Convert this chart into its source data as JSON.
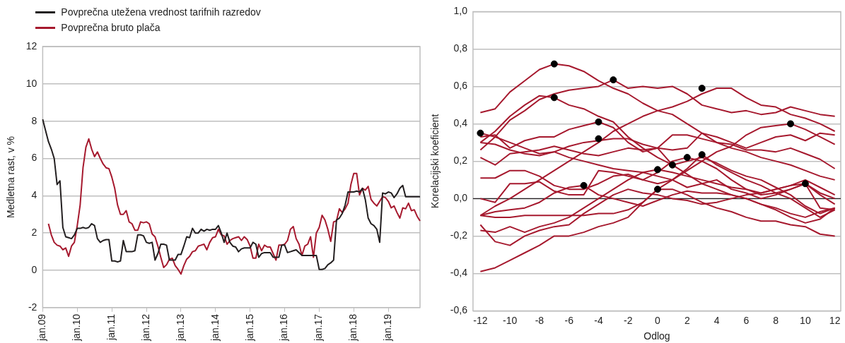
{
  "chart_data": [
    {
      "type": "line",
      "ylabel": "Medletna rast, v %",
      "legend": "top left",
      "grid": "y",
      "ylim": [
        -2,
        12
      ],
      "yticks": [
        -2,
        0,
        2,
        4,
        6,
        8,
        10,
        12
      ],
      "categories": [
        "jan.09",
        null,
        null,
        null,
        null,
        null,
        null,
        null,
        null,
        null,
        null,
        null,
        "jan.10",
        null,
        null,
        null,
        null,
        null,
        null,
        null,
        null,
        null,
        null,
        null,
        "jan.11",
        null,
        null,
        null,
        null,
        null,
        null,
        null,
        null,
        null,
        null,
        null,
        "jan.12",
        null,
        null,
        null,
        null,
        null,
        null,
        null,
        null,
        null,
        null,
        null,
        "jan.13",
        null,
        null,
        null,
        null,
        null,
        null,
        null,
        null,
        null,
        null,
        null,
        "jan.14",
        null,
        null,
        null,
        null,
        null,
        null,
        null,
        null,
        null,
        null,
        null,
        "jan.15",
        null,
        null,
        null,
        null,
        null,
        null,
        null,
        null,
        null,
        null,
        null,
        "jan.16",
        null,
        null,
        null,
        null,
        null,
        null,
        null,
        null,
        null,
        null,
        null,
        "jan.17",
        null,
        null,
        null,
        null,
        null,
        null,
        null,
        null,
        null,
        null,
        null,
        "jan.18",
        null,
        null,
        null,
        null,
        null,
        null,
        null,
        null,
        null,
        null,
        null,
        "jan.19",
        null,
        null,
        null,
        null,
        null,
        null,
        null,
        null,
        null,
        null,
        null
      ],
      "series": [
        {
          "name": "Povprečna utežena vrednost tarifnih razredov",
          "color": "#231f20",
          "values": [
            8.1,
            7.5,
            6.9,
            6.5,
            6.0,
            4.6,
            4.8,
            2.3,
            1.8,
            1.75,
            1.7,
            1.9,
            2.25,
            2.25,
            2.3,
            2.25,
            2.3,
            2.5,
            2.4,
            1.7,
            1.5,
            1.6,
            1.65,
            1.65,
            0.5,
            0.5,
            0.45,
            0.5,
            1.6,
            1.0,
            1.0,
            1.0,
            1.05,
            1.9,
            1.9,
            1.85,
            1.5,
            1.45,
            1.5,
            0.55,
            0.9,
            1.4,
            1.4,
            1.35,
            0.55,
            0.55,
            0.55,
            0.85,
            0.85,
            1.3,
            1.8,
            1.75,
            2.25,
            2.0,
            2.0,
            2.2,
            2.1,
            2.2,
            2.15,
            2.2,
            2.2,
            2.4,
            2.0,
            1.5,
            2.0,
            1.5,
            1.3,
            1.25,
            1.0,
            1.15,
            1.2,
            1.2,
            1.2,
            1.5,
            1.4,
            0.7,
            0.9,
            0.95,
            0.95,
            0.95,
            0.7,
            0.7,
            0.7,
            1.35,
            1.35,
            0.95,
            1.0,
            1.05,
            1.1,
            0.95,
            0.8,
            0.8,
            0.8,
            0.8,
            0.8,
            0.8,
            0.05,
            0.05,
            0.1,
            0.3,
            0.4,
            0.55,
            2.7,
            2.8,
            3.05,
            3.5,
            4.2,
            4.2,
            4.2,
            4.25,
            4.2,
            4.4,
            3.8,
            2.8,
            2.5,
            2.4,
            2.2,
            1.5,
            4.15,
            4.1,
            4.2,
            4.15,
            3.9,
            4.1,
            4.4,
            4.55,
            3.95,
            3.95,
            3.95,
            3.95,
            3.95,
            3.95
          ]
        },
        {
          "name": "Povprečna bruto plača",
          "color": "#a6192e",
          "values": [
            null,
            null,
            2.5,
            1.9,
            1.5,
            1.35,
            1.3,
            1.1,
            1.2,
            0.75,
            1.3,
            1.5,
            2.4,
            3.5,
            5.5,
            6.6,
            7.05,
            6.5,
            6.1,
            6.35,
            6.0,
            5.7,
            5.5,
            5.45,
            5.0,
            4.4,
            3.5,
            3.0,
            3.0,
            3.2,
            2.6,
            2.5,
            2.15,
            2.15,
            2.6,
            2.55,
            2.6,
            2.5,
            1.95,
            1.8,
            1.3,
            0.7,
            0.15,
            0.3,
            0.6,
            0.65,
            0.25,
            0.05,
            -0.2,
            0.25,
            0.6,
            0.75,
            1.0,
            1.05,
            1.3,
            1.35,
            1.4,
            1.1,
            1.5,
            1.75,
            1.8,
            2.2,
            1.9,
            1.85,
            1.4,
            1.6,
            1.7,
            1.75,
            1.8,
            1.6,
            1.8,
            1.65,
            1.3,
            0.65,
            0.65,
            1.4,
            1.05,
            1.35,
            1.25,
            1.25,
            0.9,
            0.55,
            1.35,
            1.35,
            1.4,
            1.6,
            2.2,
            2.35,
            1.7,
            1.4,
            0.8,
            1.3,
            1.4,
            1.8,
            0.7,
            2.0,
            2.3,
            2.95,
            2.7,
            2.2,
            1.55,
            2.6,
            2.65,
            3.3,
            3.1,
            3.3,
            3.6,
            4.6,
            5.2,
            5.2,
            4.05,
            4.4,
            4.3,
            4.5,
            3.8,
            3.6,
            3.45,
            3.7,
            3.95,
            3.9,
            3.7,
            3.35,
            3.45,
            3.1,
            2.8,
            3.35,
            3.3,
            3.6,
            3.2,
            3.25,
            2.9,
            2.65
          ]
        }
      ]
    },
    {
      "type": "line",
      "xlabel": "Odlog",
      "ylabel": "Korelacijski koeficient",
      "grid": "y",
      "xlim": [
        -12.5,
        12.4
      ],
      "xticks": [
        -12,
        -10,
        -8,
        -6,
        -4,
        -2,
        0,
        2,
        4,
        6,
        8,
        10,
        12
      ],
      "ylim": [
        -0.6,
        1.0
      ],
      "yticks": [
        {
          "value": -0.6,
          "label": "-0,6"
        },
        {
          "value": -0.4,
          "label": "-0,4"
        },
        {
          "value": -0.2,
          "label": "-0,2"
        },
        {
          "value": 0,
          "label": "0,0"
        },
        {
          "value": 0.2,
          "label": "0,2"
        },
        {
          "value": 0.4,
          "label": "0,4"
        },
        {
          "value": 0.6,
          "label": "0,6"
        },
        {
          "value": 0.8,
          "label": "0,8"
        },
        {
          "value": 1.0,
          "label": "1,0"
        }
      ],
      "ref_lines": [
        {
          "axis": "y",
          "value": 0,
          "color": "#231f20"
        }
      ],
      "x": [
        -12,
        -11,
        -10,
        -9,
        -8,
        -7,
        -6,
        -5,
        -4,
        -3,
        -2,
        -1,
        0,
        1,
        2,
        3,
        4,
        5,
        6,
        7,
        8,
        9,
        10,
        11,
        12
      ],
      "series": [
        {
          "color": "#a6192e",
          "values": [
            0.46,
            0.48,
            0.57,
            0.63,
            0.69,
            0.72,
            0.71,
            0.68,
            0.63,
            0.59,
            0.56,
            0.51,
            0.47,
            0.45,
            0.4,
            0.35,
            0.3,
            0.27,
            0.25,
            0.22,
            0.2,
            0.18,
            0.15,
            0.12,
            0.1
          ]
        },
        {
          "color": "#a6192e",
          "values": [
            -0.09,
            -0.04,
            0.0,
            0.05,
            0.1,
            0.15,
            0.2,
            0.25,
            0.3,
            0.36,
            0.4,
            0.44,
            0.47,
            0.49,
            0.52,
            0.56,
            0.59,
            0.59,
            0.54,
            0.5,
            0.49,
            0.45,
            0.43,
            0.4,
            0.36
          ]
        },
        {
          "color": "#a6192e",
          "values": [
            0.26,
            0.33,
            0.42,
            0.47,
            0.53,
            0.56,
            0.58,
            0.59,
            0.6,
            0.635,
            0.59,
            0.6,
            0.59,
            0.6,
            0.56,
            0.5,
            0.48,
            0.46,
            0.47,
            0.45,
            0.46,
            0.49,
            0.47,
            0.45,
            0.44
          ]
        },
        {
          "color": "#a6192e",
          "values": [
            0.3,
            0.36,
            0.44,
            0.5,
            0.55,
            0.54,
            0.5,
            0.48,
            0.44,
            0.41,
            0.33,
            0.27,
            0.22,
            0.18,
            0.13,
            0.08,
            0.05,
            0.02,
            0.0,
            -0.03,
            -0.06,
            -0.1,
            -0.13,
            -0.11,
            -0.05
          ]
        },
        {
          "color": "#a6192e",
          "values": [
            0.33,
            0.34,
            0.27,
            0.31,
            0.33,
            0.33,
            0.37,
            0.39,
            0.41,
            0.38,
            0.3,
            0.25,
            0.27,
            0.34,
            0.34,
            0.32,
            0.3,
            0.29,
            0.26,
            0.26,
            0.25,
            0.27,
            0.24,
            0.21,
            0.16
          ]
        },
        {
          "color": "#a6192e",
          "values": [
            0.3,
            0.29,
            0.26,
            0.24,
            0.23,
            0.25,
            0.28,
            0.3,
            0.31,
            0.32,
            0.32,
            0.29,
            0.27,
            0.26,
            0.27,
            0.35,
            0.33,
            0.3,
            0.27,
            0.3,
            0.33,
            0.34,
            0.31,
            0.35,
            0.34
          ]
        },
        {
          "color": "#a6192e",
          "values": [
            0.11,
            0.11,
            0.15,
            0.15,
            0.12,
            0.07,
            0.05,
            0.05,
            0.08,
            0.12,
            0.13,
            0.1,
            0.08,
            0.1,
            0.15,
            0.2,
            0.25,
            0.28,
            0.34,
            0.38,
            0.39,
            0.4,
            0.37,
            0.33,
            0.29
          ]
        },
        {
          "color": "#a6192e",
          "values": [
            -0.09,
            -0.07,
            -0.06,
            -0.05,
            -0.02,
            0.03,
            0.06,
            0.07,
            0.02,
            0.0,
            -0.02,
            -0.04,
            -0.01,
            0.02,
            0.04,
            0.03,
            0.03,
            0.02,
            0.0,
            -0.03,
            -0.05,
            -0.08,
            -0.1,
            -0.07,
            -0.05
          ]
        },
        {
          "color": "#a6192e",
          "values": [
            -0.17,
            -0.18,
            -0.15,
            -0.18,
            -0.15,
            -0.13,
            -0.1,
            -0.05,
            0.0,
            0.05,
            0.1,
            0.14,
            0.155,
            0.14,
            0.12,
            0.1,
            0.08,
            0.06,
            0.05,
            0.03,
            0.05,
            0.07,
            0.1,
            0.06,
            0.02
          ]
        },
        {
          "color": "#a6192e",
          "values": [
            -0.09,
            -0.1,
            -0.1,
            -0.09,
            -0.09,
            -0.09,
            -0.09,
            -0.09,
            -0.08,
            -0.08,
            -0.06,
            -0.02,
            0.05,
            0.05,
            0.02,
            -0.02,
            -0.05,
            -0.07,
            -0.1,
            -0.12,
            -0.12,
            -0.14,
            -0.15,
            -0.19,
            -0.2
          ]
        },
        {
          "color": "#a6192e",
          "values": [
            0.22,
            0.18,
            0.24,
            0.25,
            0.26,
            0.28,
            0.26,
            0.24,
            0.23,
            0.25,
            0.27,
            0.26,
            0.27,
            0.18,
            0.2,
            0.22,
            0.19,
            0.15,
            0.12,
            0.1,
            0.06,
            0.02,
            -0.04,
            -0.08,
            -0.05
          ]
        },
        {
          "color": "#a6192e",
          "values": [
            0.0,
            -0.02,
            0.08,
            0.08,
            0.09,
            0.04,
            0.02,
            0.02,
            0.15,
            0.14,
            0.12,
            0.1,
            0.14,
            0.2,
            0.22,
            0.2,
            0.16,
            0.1,
            0.05,
            0.02,
            0.03,
            0.05,
            0.08,
            0.02,
            -0.03
          ]
        },
        {
          "color": "#a6192e",
          "values": [
            -0.39,
            -0.37,
            -0.33,
            -0.29,
            -0.25,
            -0.2,
            -0.2,
            -0.18,
            -0.15,
            -0.13,
            -0.1,
            -0.02,
            0.05,
            0.1,
            0.16,
            0.235,
            0.18,
            0.14,
            0.1,
            0.07,
            0.03,
            0.0,
            -0.05,
            -0.1,
            -0.06
          ]
        },
        {
          "color": "#a6192e",
          "values": [
            -0.14,
            -0.23,
            -0.25,
            -0.2,
            -0.17,
            -0.15,
            -0.14,
            -0.08,
            -0.03,
            0.02,
            0.05,
            0.03,
            0.02,
            0.0,
            -0.01,
            -0.03,
            -0.02,
            0.0,
            0.02,
            0.03,
            0.05,
            0.07,
            0.08,
            -0.05,
            -0.06
          ]
        },
        {
          "color": "#a6192e",
          "values": [
            0.35,
            0.33,
            0.3,
            0.27,
            0.24,
            0.25,
            0.22,
            0.2,
            0.18,
            0.16,
            0.15,
            0.14,
            0.12,
            0.1,
            0.06,
            0.08,
            0.1,
            0.05,
            0.03,
            0.0,
            0.02,
            0.05,
            0.08,
            0.03,
            0.0
          ]
        },
        {
          "type": "scatter",
          "marker": "circle",
          "color": "#000000",
          "x": [
            -12,
            -7,
            -7,
            -3,
            -4,
            -4,
            -5,
            0,
            0,
            1,
            2,
            3,
            3,
            9,
            10
          ],
          "values": [
            0.35,
            0.72,
            0.54,
            0.635,
            0.41,
            0.32,
            0.07,
            0.155,
            0.05,
            0.18,
            0.22,
            0.235,
            0.59,
            0.4,
            0.08
          ]
        }
      ]
    }
  ]
}
